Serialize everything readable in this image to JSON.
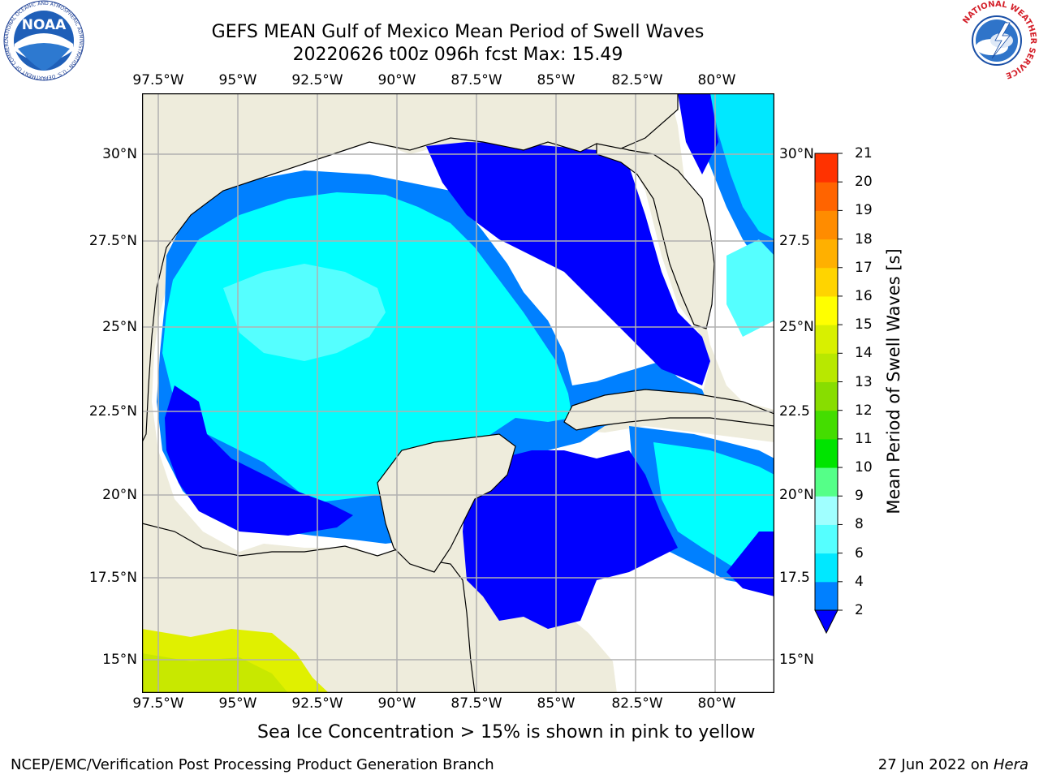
{
  "title": {
    "line1": "GEFS MEAN Gulf of Mexico Mean Period of Swell Waves",
    "line2": "20220626 t00z 096h fcst   Max: 15.49"
  },
  "map": {
    "lon_labels": [
      "97.5°W",
      "95°W",
      "92.5°W",
      "90°W",
      "87.5°W",
      "85°W",
      "82.5°W",
      "80°W"
    ],
    "lat_labels_left": [
      "30°N",
      "27.5°N",
      "25°N",
      "22.5°N",
      "20°N",
      "17.5°N",
      "15°N"
    ],
    "lat_labels_right": [
      "30°N",
      "27.5",
      "25°N",
      "22.5",
      "20°N",
      "17.5",
      "15°N"
    ],
    "land_color": "#eeecdc",
    "grid_color": "#b0b0b0"
  },
  "colorbar": {
    "label": "Mean Period of Swell Waves [s]",
    "ticks": [
      "2",
      "4",
      "6",
      "8",
      "9",
      "10",
      "11",
      "12",
      "13",
      "14",
      "15",
      "16",
      "17",
      "18",
      "19",
      "20",
      "21"
    ],
    "colors": [
      "#0080ff",
      "#00e8ff",
      "#55ffff",
      "#a0ffff",
      "#55ff88",
      "#00e400",
      "#44dd00",
      "#88dd00",
      "#b8e800",
      "#d8f000",
      "#ffff00",
      "#ffd400",
      "#ffb000",
      "#ff8c00",
      "#ff6400",
      "#ff3200",
      "#ff0000"
    ],
    "under_color": "#0000ff"
  },
  "caption": "Sea Ice Concentration > 15% is shown in pink to yellow",
  "footer": {
    "left": "NCEP/EMC/Verification Post Processing Product Generation Branch",
    "right_date": "27 Jun 2022 on ",
    "right_host": "Hera"
  },
  "logos": {
    "noaa_text": "NOAA",
    "noaa_ring": "NATIONAL OCEANIC AND ATMOSPHERIC ADMINISTRATION · U.S. DEPARTMENT OF COMMERCE",
    "nws_ring": "NATIONAL WEATHER SERVICE"
  }
}
